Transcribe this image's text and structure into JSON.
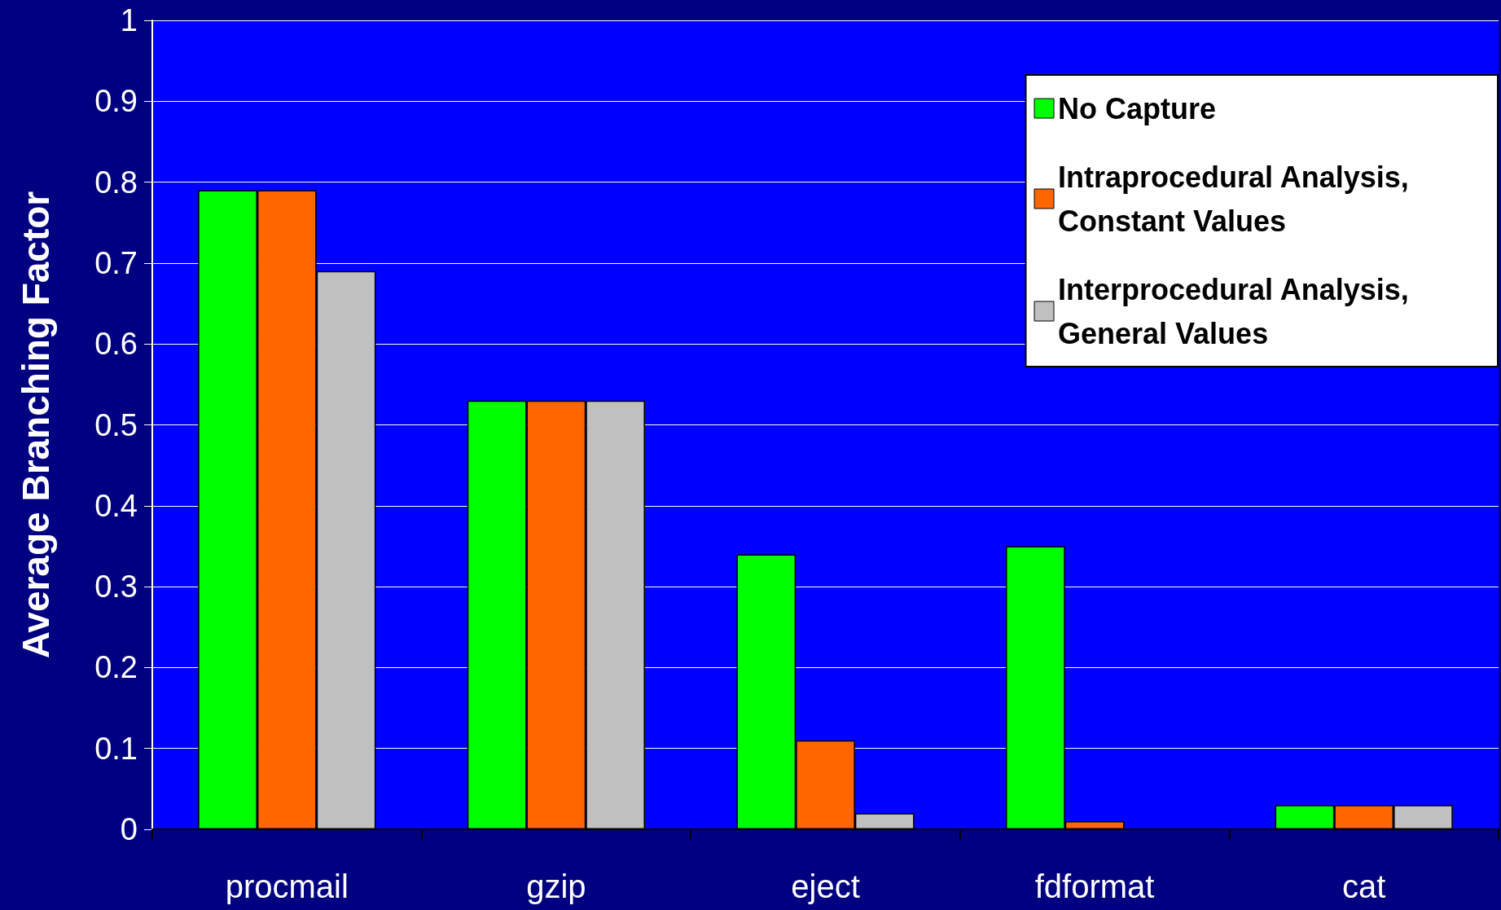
{
  "chart_data": {
    "type": "bar",
    "ylabel": "Average Branching Factor",
    "categories": [
      "procmail",
      "gzip",
      "eject",
      "fdformat",
      "cat"
    ],
    "series": [
      {
        "name": "No Capture",
        "color": "#00ff00",
        "values": [
          0.79,
          0.53,
          0.34,
          0.35,
          0.03
        ]
      },
      {
        "name": "Intraprocedural Analysis, Constant Values",
        "color": "#ff6600",
        "values": [
          0.79,
          0.53,
          0.11,
          0.01,
          0.03
        ]
      },
      {
        "name": "Interprocedural Analysis, General Values",
        "color": "#c0c0c0",
        "values": [
          0.69,
          0.53,
          0.02,
          null,
          0.03
        ]
      }
    ],
    "ylim": [
      0,
      1
    ],
    "yticks": [
      0,
      0.1,
      0.2,
      0.3,
      0.4,
      0.5,
      0.6,
      0.7,
      0.8,
      0.9,
      1
    ],
    "grid": "y",
    "legend": "top right"
  }
}
